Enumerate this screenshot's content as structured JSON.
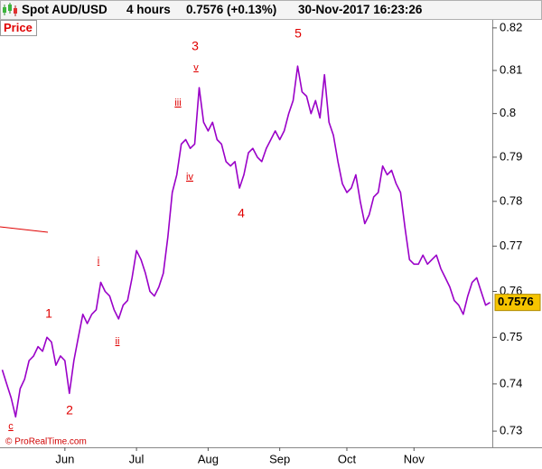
{
  "chart_data": {
    "type": "line",
    "instrument": "Spot AUD/USD",
    "timeframe": "4 hours",
    "quote": "0.7576 (+0.13%)",
    "timestamp": "30-Nov-2017 16:23:26",
    "panel_label": "Price",
    "copyright": "© ProRealTime.com",
    "log_scale": true,
    "ylim": [
      0.7266,
      0.8219
    ],
    "yticks": [
      0.73,
      0.74,
      0.75,
      0.76,
      0.77,
      0.78,
      0.79,
      0.8,
      0.81,
      0.82
    ],
    "categories": [
      null,
      null,
      null,
      null,
      null,
      null,
      null,
      null,
      null,
      null,
      null,
      null,
      null,
      null,
      "Jun",
      null,
      null,
      null,
      null,
      null,
      null,
      null,
      null,
      null,
      null,
      null,
      null,
      null,
      null,
      null,
      "Jul",
      null,
      null,
      null,
      null,
      null,
      null,
      null,
      null,
      null,
      null,
      null,
      null,
      null,
      null,
      null,
      "Aug",
      null,
      null,
      null,
      null,
      null,
      null,
      null,
      null,
      null,
      null,
      null,
      null,
      null,
      null,
      null,
      "Sep",
      null,
      null,
      null,
      null,
      null,
      null,
      null,
      null,
      null,
      null,
      null,
      null,
      null,
      null,
      "Oct",
      null,
      null,
      null,
      null,
      null,
      null,
      null,
      null,
      null,
      null,
      null,
      null,
      null,
      null,
      "Nov",
      null,
      null,
      null,
      null,
      null,
      null,
      null,
      null,
      null,
      null,
      null,
      null,
      null,
      null,
      null,
      null,
      null
    ],
    "series": [
      {
        "name": "AUD/USD",
        "color": "#9a00c8",
        "values": [
          0.743,
          0.74,
          0.737,
          0.733,
          0.739,
          0.741,
          0.745,
          0.746,
          0.748,
          0.747,
          0.75,
          0.749,
          0.744,
          0.746,
          0.745,
          0.738,
          0.745,
          0.75,
          0.755,
          0.753,
          0.755,
          0.756,
          0.762,
          0.76,
          0.759,
          0.756,
          0.754,
          0.757,
          0.758,
          0.763,
          0.769,
          0.767,
          0.764,
          0.76,
          0.759,
          0.761,
          0.764,
          0.772,
          0.782,
          0.786,
          0.793,
          0.794,
          0.792,
          0.793,
          0.806,
          0.798,
          0.796,
          0.798,
          0.794,
          0.793,
          0.789,
          0.788,
          0.789,
          0.783,
          0.786,
          0.791,
          0.792,
          0.79,
          0.789,
          0.792,
          0.794,
          0.796,
          0.794,
          0.796,
          0.8,
          0.803,
          0.811,
          0.805,
          0.804,
          0.8,
          0.803,
          0.799,
          0.809,
          0.798,
          0.795,
          0.789,
          0.784,
          0.782,
          0.783,
          0.786,
          0.78,
          0.775,
          0.777,
          0.781,
          0.782,
          0.788,
          0.786,
          0.787,
          0.784,
          0.782,
          0.774,
          0.767,
          0.766,
          0.766,
          0.768,
          0.766,
          0.767,
          0.768,
          0.765,
          0.763,
          0.761,
          0.758,
          0.757,
          0.755,
          0.759,
          0.762,
          0.763,
          0.76,
          0.757,
          0.7576
        ]
      }
    ],
    "annotations": [
      "1",
      "2",
      "3",
      "4",
      "5",
      "c",
      "i",
      "ii",
      "iii",
      "iv",
      "v"
    ]
  }
}
